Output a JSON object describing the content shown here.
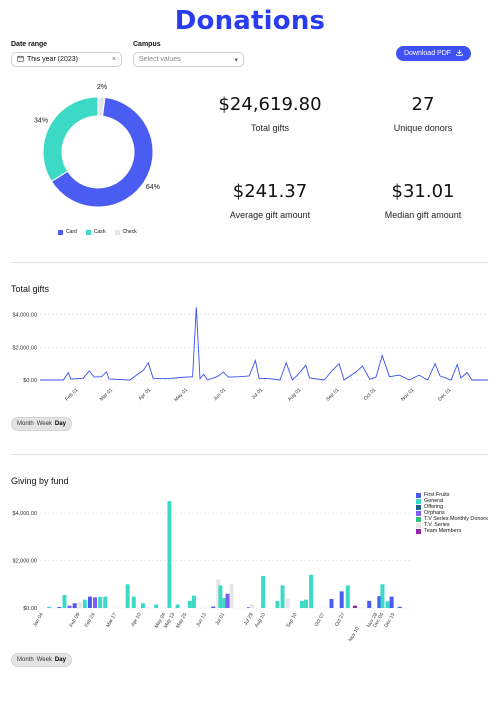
{
  "page": {
    "title": "Donations"
  },
  "filters": {
    "date_range_label": "Date range",
    "date_range_value": "This year (2023)",
    "campus_label": "Campus",
    "campus_placeholder": "Select values"
  },
  "download_button": {
    "label": "Download PDF"
  },
  "stats": [
    {
      "value": "$24,619.80",
      "label": "Total gifts"
    },
    {
      "value": "27",
      "label": "Unique donors"
    },
    {
      "value": "$241.37",
      "label": "Average gift amount"
    },
    {
      "value": "$31.01",
      "label": "Median gift amount"
    }
  ],
  "granularity_options": [
    "Month",
    "Week",
    "Day"
  ],
  "granularity_selected": "Day",
  "chart_data": [
    {
      "type": "pie",
      "labels": [
        "Card",
        "Cash",
        "Check"
      ],
      "values": [
        64,
        34,
        2
      ],
      "slice_labels": [
        "64%",
        "34%",
        "2%"
      ],
      "colors": [
        "#4a5cf2",
        "#3dd9c7",
        "#e6e6e6"
      ],
      "donut": true,
      "legend": "bottom"
    },
    {
      "type": "line",
      "title": "Total gifts",
      "x_ticks": [
        "Feb 01",
        "Mar 01",
        "Apr 01",
        "May 01",
        "Jun 01",
        "Jul 01",
        "Aug 01",
        "Sep 01",
        "Oct 01",
        "Nov 01",
        "Dec 01"
      ],
      "y_ticks": [
        "$0.00",
        "$2,000.00",
        "$4,000.00"
      ],
      "ylim": [
        0,
        4400
      ],
      "color": "#3a4ff0",
      "x_domain": [
        "2023-01-01",
        "2023-12-31"
      ],
      "points": [
        [
          "2023-01-01",
          0
        ],
        [
          "2023-01-20",
          0
        ],
        [
          "2023-01-24",
          450
        ],
        [
          "2023-01-26",
          60
        ],
        [
          "2023-02-05",
          100
        ],
        [
          "2023-02-10",
          550
        ],
        [
          "2023-02-14",
          180
        ],
        [
          "2023-02-20",
          200
        ],
        [
          "2023-02-24",
          500
        ],
        [
          "2023-02-26",
          60
        ],
        [
          "2023-03-15",
          0
        ],
        [
          "2023-03-26",
          600
        ],
        [
          "2023-03-30",
          1050
        ],
        [
          "2023-04-03",
          100
        ],
        [
          "2023-04-15",
          80
        ],
        [
          "2023-04-25",
          150
        ],
        [
          "2023-05-05",
          200
        ],
        [
          "2023-05-08",
          4450
        ],
        [
          "2023-05-11",
          80
        ],
        [
          "2023-05-14",
          350
        ],
        [
          "2023-05-17",
          0
        ],
        [
          "2023-05-25",
          200
        ],
        [
          "2023-05-30",
          480
        ],
        [
          "2023-06-03",
          180
        ],
        [
          "2023-06-12",
          200
        ],
        [
          "2023-06-20",
          250
        ],
        [
          "2023-06-25",
          1200
        ],
        [
          "2023-06-28",
          100
        ],
        [
          "2023-07-05",
          100
        ],
        [
          "2023-07-15",
          0
        ],
        [
          "2023-07-20",
          1050
        ],
        [
          "2023-07-25",
          0
        ],
        [
          "2023-07-29",
          280
        ],
        [
          "2023-08-05",
          900
        ],
        [
          "2023-08-08",
          120
        ],
        [
          "2023-08-20",
          0
        ],
        [
          "2023-08-26",
          550
        ],
        [
          "2023-09-01",
          1000
        ],
        [
          "2023-09-05",
          0
        ],
        [
          "2023-09-15",
          500
        ],
        [
          "2023-09-20",
          850
        ],
        [
          "2023-09-26",
          40
        ],
        [
          "2023-10-01",
          180
        ],
        [
          "2023-10-06",
          1500
        ],
        [
          "2023-10-12",
          200
        ],
        [
          "2023-10-20",
          300
        ],
        [
          "2023-10-28",
          0
        ],
        [
          "2023-11-05",
          300
        ],
        [
          "2023-11-12",
          0
        ],
        [
          "2023-11-18",
          1000
        ],
        [
          "2023-11-22",
          250
        ],
        [
          "2023-12-01",
          0
        ],
        [
          "2023-12-06",
          950
        ],
        [
          "2023-12-09",
          120
        ],
        [
          "2023-12-14",
          450
        ],
        [
          "2023-12-18",
          0
        ],
        [
          "2023-12-31",
          0
        ]
      ]
    },
    {
      "type": "bar",
      "title": "Giving by fund",
      "x_ticks": [
        "Jan 04",
        "Feb 09",
        "Feb 24",
        "Mar 17",
        "Apr 10",
        "May 04",
        "May 13",
        "May 25",
        "Jun 13",
        "Jul 01",
        "Jul 29",
        "Aug 10",
        "Sep 10",
        "Oct 07",
        "Oct 27",
        "Nov 10",
        "Nov 28",
        "Dec 04",
        "Dec 15"
      ],
      "y_ticks": [
        "$0.00",
        "$2,000.00",
        "$4,000.00"
      ],
      "ylim": [
        0,
        4800
      ],
      "series": [
        {
          "name": "First Fruits",
          "color": "#4a5cf2"
        },
        {
          "name": "General",
          "color": "#3dd9c7"
        },
        {
          "name": "Offering",
          "color": "#1f5f8b"
        },
        {
          "name": "Orphans",
          "color": "#7b5ff5"
        },
        {
          "name": "T.V Series Monthly Donors",
          "color": "#2ec27e"
        },
        {
          "name": "T.V. Series",
          "color": "#e6e6e6"
        },
        {
          "name": "Team Members",
          "color": "#8e24aa"
        }
      ],
      "bars": [
        [
          "2023-01-10",
          1,
          50
        ],
        [
          "2023-01-20",
          0,
          40
        ],
        [
          "2023-01-25",
          1,
          550
        ],
        [
          "2023-01-30",
          3,
          100
        ],
        [
          "2023-02-04",
          0,
          200
        ],
        [
          "2023-02-09",
          5,
          250
        ],
        [
          "2023-02-14",
          1,
          350
        ],
        [
          "2023-02-19",
          0,
          480
        ],
        [
          "2023-02-24",
          3,
          450
        ],
        [
          "2023-03-01",
          1,
          470
        ],
        [
          "2023-03-06",
          1,
          480
        ],
        [
          "2023-03-28",
          1,
          1000
        ],
        [
          "2023-04-03",
          1,
          480
        ],
        [
          "2023-04-12",
          1,
          200
        ],
        [
          "2023-04-25",
          1,
          150
        ],
        [
          "2023-05-08",
          1,
          4500
        ],
        [
          "2023-05-16",
          1,
          150
        ],
        [
          "2023-05-28",
          1,
          300
        ],
        [
          "2023-06-01",
          1,
          520
        ],
        [
          "2023-06-20",
          0,
          60
        ],
        [
          "2023-06-25",
          5,
          1200
        ],
        [
          "2023-06-27",
          1,
          950
        ],
        [
          "2023-07-01",
          1,
          420
        ],
        [
          "2023-07-04",
          3,
          600
        ],
        [
          "2023-07-08",
          5,
          1000
        ],
        [
          "2023-07-25",
          0,
          30
        ],
        [
          "2023-07-28",
          5,
          150
        ],
        [
          "2023-08-08",
          1,
          1350
        ],
        [
          "2023-08-22",
          1,
          300
        ],
        [
          "2023-08-27",
          1,
          950
        ],
        [
          "2023-09-01",
          5,
          400
        ],
        [
          "2023-09-15",
          1,
          300
        ],
        [
          "2023-09-19",
          1,
          350
        ],
        [
          "2023-09-24",
          1,
          1400
        ],
        [
          "2023-10-14",
          0,
          380
        ],
        [
          "2023-10-24",
          0,
          700
        ],
        [
          "2023-10-30",
          1,
          950
        ],
        [
          "2023-11-06",
          6,
          100
        ],
        [
          "2023-11-20",
          0,
          300
        ],
        [
          "2023-11-30",
          0,
          500
        ],
        [
          "2023-12-03",
          1,
          1000
        ],
        [
          "2023-12-08",
          1,
          280
        ],
        [
          "2023-12-12",
          0,
          480
        ],
        [
          "2023-12-20",
          0,
          50
        ]
      ],
      "legend": "right"
    }
  ]
}
